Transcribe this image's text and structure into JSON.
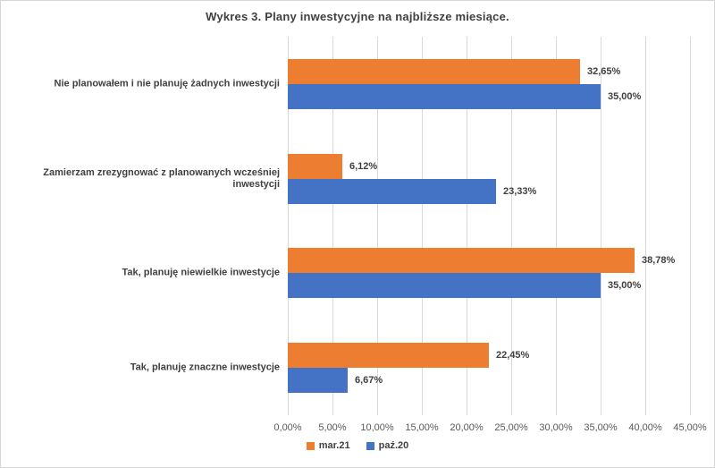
{
  "title": "Wykres 3. Plany inwestycyjne na najbliższe miesiące.",
  "chart_data": {
    "type": "bar",
    "orientation": "horizontal",
    "title": "Wykres 3. Plany inwestycyjne na najbliższe miesiące.",
    "categories": [
      "Nie planowałem i nie planuję żadnych inwestycji",
      "Zamierzam zrezygnować z planowanych wcześniej inwestycji",
      "Tak, planuję niewielkie inwestycje",
      "Tak, planuję znaczne inwestycje"
    ],
    "series": [
      {
        "name": "mar.21",
        "color": "#ED7D31",
        "values": [
          32.65,
          6.12,
          38.78,
          22.45
        ],
        "labels": [
          "32,65%",
          "6,12%",
          "38,78%",
          "22,45%"
        ]
      },
      {
        "name": "paź.20",
        "color": "#4472C4",
        "values": [
          35.0,
          23.33,
          35.0,
          6.67
        ],
        "labels": [
          "35,00%",
          "23,33%",
          "35,00%",
          "6,67%"
        ]
      }
    ],
    "xlim": [
      0,
      45
    ],
    "x_tick_step": 5,
    "x_ticks": [
      "0,00%",
      "5,00%",
      "10,00%",
      "15,00%",
      "20,00%",
      "25,00%",
      "30,00%",
      "35,00%",
      "40,00%",
      "45,00%"
    ],
    "grid": true,
    "legend_position": "bottom",
    "colors": {
      "grid": "#d9d9d9",
      "tick_text": "#595959",
      "label_text": "#404040"
    }
  }
}
